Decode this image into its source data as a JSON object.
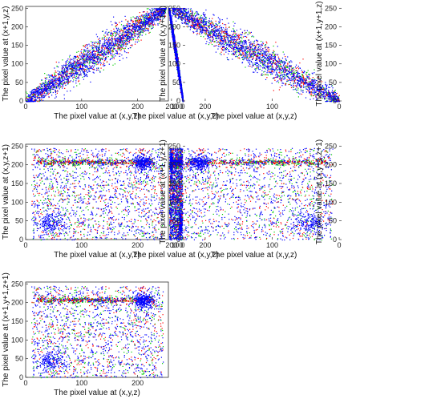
{
  "colors": {
    "red": "#ff0000",
    "green": "#00cc00",
    "blue": "#0000ff",
    "axis": "#333333"
  },
  "chart_data": [
    {
      "type": "scatter",
      "pattern": "diagonal",
      "spread": "wide",
      "xlabel": "The pixel value at (x,y,z)",
      "ylabel": "The pixel value at (x+1,y,z)",
      "xticks": [
        0,
        100,
        200
      ],
      "yticks": [
        0,
        50,
        100,
        150,
        200,
        250
      ],
      "xlim": [
        0,
        255
      ],
      "ylim": [
        0,
        255
      ],
      "series": [
        {
          "color": "red"
        },
        {
          "color": "green"
        },
        {
          "color": "blue"
        }
      ]
    },
    {
      "type": "scatter",
      "pattern": "diagonal",
      "spread": "narrow",
      "xlabel": "The pixel value at (x,y,z)",
      "ylabel": "The pixel value at (x,y+1,z)",
      "xticks": [
        0,
        100,
        200
      ],
      "yticks": [
        0,
        50,
        100,
        150,
        200,
        250
      ],
      "xlim": [
        0,
        255
      ],
      "ylim": [
        0,
        255
      ],
      "series": [
        {
          "color": "red"
        },
        {
          "color": "green"
        },
        {
          "color": "blue"
        }
      ]
    },
    {
      "type": "scatter",
      "pattern": "diagonal",
      "spread": "wide",
      "xlabel": "The pixel value at (x,y,z)",
      "ylabel": "The pixel value at (x+1,y+1,z)",
      "xticks": [
        0,
        100,
        200
      ],
      "yticks": [
        0,
        50,
        100,
        150,
        200,
        250
      ],
      "xlim": [
        0,
        255
      ],
      "ylim": [
        0,
        255
      ],
      "series": [
        {
          "color": "red"
        },
        {
          "color": "green"
        },
        {
          "color": "blue"
        }
      ]
    },
    {
      "type": "scatter",
      "pattern": "uncorrelated",
      "xlabel": "The pixel value at (x,y,z)",
      "ylabel": "The pixel value at (x,y,z+1)",
      "xticks": [
        0,
        100,
        200
      ],
      "yticks": [
        0,
        50,
        100,
        150,
        200,
        250
      ],
      "xlim": [
        0,
        255
      ],
      "ylim": [
        0,
        255
      ],
      "series": [
        {
          "color": "red"
        },
        {
          "color": "green"
        },
        {
          "color": "blue"
        }
      ]
    },
    {
      "type": "scatter",
      "pattern": "uncorrelated",
      "xlabel": "The pixel value at (x,y,z)",
      "ylabel": "The pixel value at (x+1,y,z+1)",
      "xticks": [
        0,
        100,
        200
      ],
      "yticks": [
        0,
        50,
        100,
        150,
        200,
        250
      ],
      "xlim": [
        0,
        255
      ],
      "ylim": [
        0,
        255
      ],
      "series": [
        {
          "color": "red"
        },
        {
          "color": "green"
        },
        {
          "color": "blue"
        }
      ]
    },
    {
      "type": "scatter",
      "pattern": "uncorrelated",
      "xlabel": "The pixel value at (x,y,z)",
      "ylabel": "The pixel value at (x,y+1,z+1)",
      "xticks": [
        0,
        100,
        200
      ],
      "yticks": [
        0,
        50,
        100,
        150,
        200,
        250
      ],
      "xlim": [
        0,
        255
      ],
      "ylim": [
        0,
        255
      ],
      "series": [
        {
          "color": "red"
        },
        {
          "color": "green"
        },
        {
          "color": "blue"
        }
      ]
    },
    {
      "type": "scatter",
      "pattern": "uncorrelated",
      "xlabel": "The pixel value at (x,y,z)",
      "ylabel": "The pixel value at (x+1,y+1,z+1)",
      "xticks": [
        0,
        100,
        200
      ],
      "yticks": [
        0,
        50,
        100,
        150,
        200,
        250
      ],
      "xlim": [
        0,
        255
      ],
      "ylim": [
        0,
        255
      ],
      "series": [
        {
          "color": "red"
        },
        {
          "color": "green"
        },
        {
          "color": "blue"
        }
      ]
    }
  ]
}
